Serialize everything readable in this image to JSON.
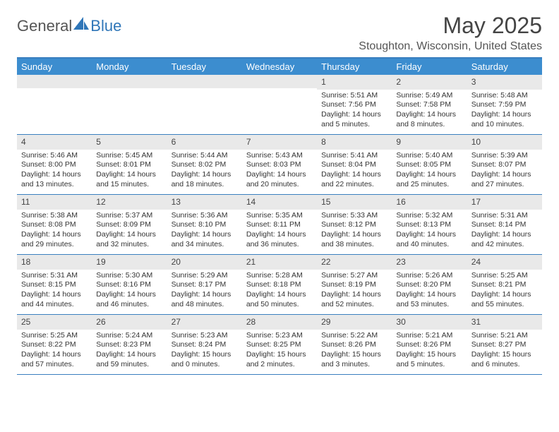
{
  "brand": {
    "part1": "General",
    "part2": "Blue"
  },
  "colors": {
    "header_bg": "#3c8dcf",
    "header_border": "#3a7fbf",
    "daynum_bg": "#e9e9e9",
    "text": "#333333",
    "logo_blue": "#2f76b8"
  },
  "title": "May 2025",
  "location": "Stoughton, Wisconsin, United States",
  "day_names": [
    "Sunday",
    "Monday",
    "Tuesday",
    "Wednesday",
    "Thursday",
    "Friday",
    "Saturday"
  ],
  "weeks": [
    [
      {
        "n": ""
      },
      {
        "n": ""
      },
      {
        "n": ""
      },
      {
        "n": ""
      },
      {
        "n": "1",
        "sr": "Sunrise: 5:51 AM",
        "ss": "Sunset: 7:56 PM",
        "dl1": "Daylight: 14 hours",
        "dl2": "and 5 minutes."
      },
      {
        "n": "2",
        "sr": "Sunrise: 5:49 AM",
        "ss": "Sunset: 7:58 PM",
        "dl1": "Daylight: 14 hours",
        "dl2": "and 8 minutes."
      },
      {
        "n": "3",
        "sr": "Sunrise: 5:48 AM",
        "ss": "Sunset: 7:59 PM",
        "dl1": "Daylight: 14 hours",
        "dl2": "and 10 minutes."
      }
    ],
    [
      {
        "n": "4",
        "sr": "Sunrise: 5:46 AM",
        "ss": "Sunset: 8:00 PM",
        "dl1": "Daylight: 14 hours",
        "dl2": "and 13 minutes."
      },
      {
        "n": "5",
        "sr": "Sunrise: 5:45 AM",
        "ss": "Sunset: 8:01 PM",
        "dl1": "Daylight: 14 hours",
        "dl2": "and 15 minutes."
      },
      {
        "n": "6",
        "sr": "Sunrise: 5:44 AM",
        "ss": "Sunset: 8:02 PM",
        "dl1": "Daylight: 14 hours",
        "dl2": "and 18 minutes."
      },
      {
        "n": "7",
        "sr": "Sunrise: 5:43 AM",
        "ss": "Sunset: 8:03 PM",
        "dl1": "Daylight: 14 hours",
        "dl2": "and 20 minutes."
      },
      {
        "n": "8",
        "sr": "Sunrise: 5:41 AM",
        "ss": "Sunset: 8:04 PM",
        "dl1": "Daylight: 14 hours",
        "dl2": "and 22 minutes."
      },
      {
        "n": "9",
        "sr": "Sunrise: 5:40 AM",
        "ss": "Sunset: 8:05 PM",
        "dl1": "Daylight: 14 hours",
        "dl2": "and 25 minutes."
      },
      {
        "n": "10",
        "sr": "Sunrise: 5:39 AM",
        "ss": "Sunset: 8:07 PM",
        "dl1": "Daylight: 14 hours",
        "dl2": "and 27 minutes."
      }
    ],
    [
      {
        "n": "11",
        "sr": "Sunrise: 5:38 AM",
        "ss": "Sunset: 8:08 PM",
        "dl1": "Daylight: 14 hours",
        "dl2": "and 29 minutes."
      },
      {
        "n": "12",
        "sr": "Sunrise: 5:37 AM",
        "ss": "Sunset: 8:09 PM",
        "dl1": "Daylight: 14 hours",
        "dl2": "and 32 minutes."
      },
      {
        "n": "13",
        "sr": "Sunrise: 5:36 AM",
        "ss": "Sunset: 8:10 PM",
        "dl1": "Daylight: 14 hours",
        "dl2": "and 34 minutes."
      },
      {
        "n": "14",
        "sr": "Sunrise: 5:35 AM",
        "ss": "Sunset: 8:11 PM",
        "dl1": "Daylight: 14 hours",
        "dl2": "and 36 minutes."
      },
      {
        "n": "15",
        "sr": "Sunrise: 5:33 AM",
        "ss": "Sunset: 8:12 PM",
        "dl1": "Daylight: 14 hours",
        "dl2": "and 38 minutes."
      },
      {
        "n": "16",
        "sr": "Sunrise: 5:32 AM",
        "ss": "Sunset: 8:13 PM",
        "dl1": "Daylight: 14 hours",
        "dl2": "and 40 minutes."
      },
      {
        "n": "17",
        "sr": "Sunrise: 5:31 AM",
        "ss": "Sunset: 8:14 PM",
        "dl1": "Daylight: 14 hours",
        "dl2": "and 42 minutes."
      }
    ],
    [
      {
        "n": "18",
        "sr": "Sunrise: 5:31 AM",
        "ss": "Sunset: 8:15 PM",
        "dl1": "Daylight: 14 hours",
        "dl2": "and 44 minutes."
      },
      {
        "n": "19",
        "sr": "Sunrise: 5:30 AM",
        "ss": "Sunset: 8:16 PM",
        "dl1": "Daylight: 14 hours",
        "dl2": "and 46 minutes."
      },
      {
        "n": "20",
        "sr": "Sunrise: 5:29 AM",
        "ss": "Sunset: 8:17 PM",
        "dl1": "Daylight: 14 hours",
        "dl2": "and 48 minutes."
      },
      {
        "n": "21",
        "sr": "Sunrise: 5:28 AM",
        "ss": "Sunset: 8:18 PM",
        "dl1": "Daylight: 14 hours",
        "dl2": "and 50 minutes."
      },
      {
        "n": "22",
        "sr": "Sunrise: 5:27 AM",
        "ss": "Sunset: 8:19 PM",
        "dl1": "Daylight: 14 hours",
        "dl2": "and 52 minutes."
      },
      {
        "n": "23",
        "sr": "Sunrise: 5:26 AM",
        "ss": "Sunset: 8:20 PM",
        "dl1": "Daylight: 14 hours",
        "dl2": "and 53 minutes."
      },
      {
        "n": "24",
        "sr": "Sunrise: 5:25 AM",
        "ss": "Sunset: 8:21 PM",
        "dl1": "Daylight: 14 hours",
        "dl2": "and 55 minutes."
      }
    ],
    [
      {
        "n": "25",
        "sr": "Sunrise: 5:25 AM",
        "ss": "Sunset: 8:22 PM",
        "dl1": "Daylight: 14 hours",
        "dl2": "and 57 minutes."
      },
      {
        "n": "26",
        "sr": "Sunrise: 5:24 AM",
        "ss": "Sunset: 8:23 PM",
        "dl1": "Daylight: 14 hours",
        "dl2": "and 59 minutes."
      },
      {
        "n": "27",
        "sr": "Sunrise: 5:23 AM",
        "ss": "Sunset: 8:24 PM",
        "dl1": "Daylight: 15 hours",
        "dl2": "and 0 minutes."
      },
      {
        "n": "28",
        "sr": "Sunrise: 5:23 AM",
        "ss": "Sunset: 8:25 PM",
        "dl1": "Daylight: 15 hours",
        "dl2": "and 2 minutes."
      },
      {
        "n": "29",
        "sr": "Sunrise: 5:22 AM",
        "ss": "Sunset: 8:26 PM",
        "dl1": "Daylight: 15 hours",
        "dl2": "and 3 minutes."
      },
      {
        "n": "30",
        "sr": "Sunrise: 5:21 AM",
        "ss": "Sunset: 8:26 PM",
        "dl1": "Daylight: 15 hours",
        "dl2": "and 5 minutes."
      },
      {
        "n": "31",
        "sr": "Sunrise: 5:21 AM",
        "ss": "Sunset: 8:27 PM",
        "dl1": "Daylight: 15 hours",
        "dl2": "and 6 minutes."
      }
    ]
  ]
}
